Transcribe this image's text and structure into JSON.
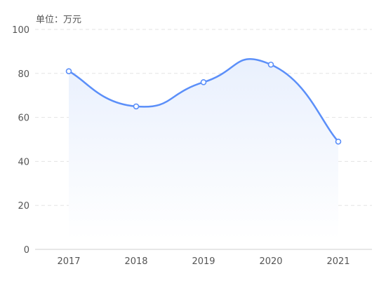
{
  "chart_data": {
    "type": "area",
    "unit_label": "单位：万元",
    "categories": [
      "2017",
      "2018",
      "2019",
      "2020",
      "2021"
    ],
    "series": [
      {
        "values": [
          81,
          65,
          76,
          84,
          49
        ]
      }
    ],
    "ylim": [
      0,
      100
    ],
    "yticks": [
      "0",
      "20",
      "40",
      "60",
      "80",
      "100"
    ],
    "grid": true,
    "smooth": true,
    "colors": {
      "line": "#5b8ff9",
      "fill_top": "#e9f0fd",
      "fill_bottom": "#ffffff",
      "grid": "#e3e3e3",
      "axis": "#cfcfcf",
      "marker_fill": "#ffffff"
    }
  }
}
